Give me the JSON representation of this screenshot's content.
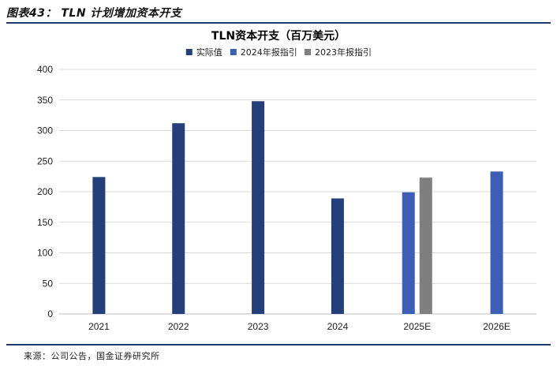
{
  "header": {
    "figure_title": "图表43：  TLN 计划增加资本开支"
  },
  "footer": {
    "source": "来源：公司公告，国金证券研究所"
  },
  "colors": {
    "actual": "#243f7a",
    "guide2024": "#3d5eb5",
    "guide2023": "#7f7f7f",
    "grid": "#d9d9d9",
    "rule": "#1f3a6e"
  },
  "chart_data": {
    "type": "bar",
    "title": "TLN资本开支（百万美元）",
    "categories": [
      "2021",
      "2022",
      "2023",
      "2024",
      "2025E",
      "2026E"
    ],
    "series": [
      {
        "name": "实际值",
        "color": "#243f7a",
        "values": [
          224,
          312,
          348,
          189,
          null,
          null
        ]
      },
      {
        "name": "2024年报指引",
        "color": "#3d5eb5",
        "values": [
          null,
          null,
          null,
          null,
          199,
          233
        ]
      },
      {
        "name": "2023年报指引",
        "color": "#7f7f7f",
        "values": [
          null,
          null,
          null,
          null,
          223,
          null
        ]
      }
    ],
    "ylim": [
      0,
      400
    ],
    "yticks": [
      0,
      50,
      100,
      150,
      200,
      250,
      300,
      350,
      400
    ],
    "grid": true,
    "legend": "top-center"
  }
}
